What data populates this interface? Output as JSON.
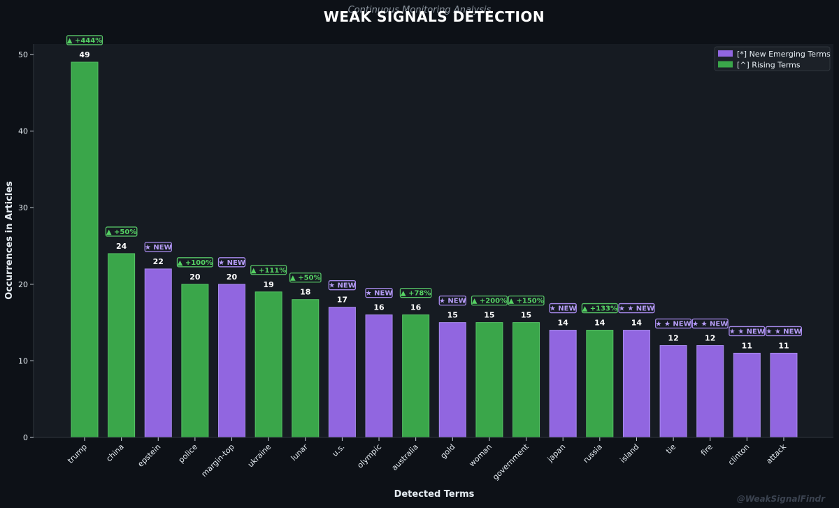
{
  "colors": {
    "background": "#0d1117",
    "plot_background": "#161b22",
    "new": "#9166e0",
    "new_edge": "#a98bef",
    "rising": "#3aa64a",
    "rising_edge": "#56c466",
    "badge_new_text": "#b59cf5",
    "badge_rising_text": "#56d364"
  },
  "chart_data": {
    "type": "bar",
    "title": "WEAK SIGNALS DETECTION",
    "subtitle": "Continuous Monitoring Analysis",
    "xlabel": "Detected Terms",
    "ylabel": "Occurrences in Articles",
    "ylim": [
      0,
      52
    ],
    "yticks": [
      0,
      10,
      20,
      30,
      40,
      50
    ],
    "grid": false,
    "legend_position": "top-right",
    "legend": [
      {
        "key": "new",
        "label": "[*] New Emerging Terms"
      },
      {
        "key": "rising",
        "label": "[^] Rising Terms"
      }
    ],
    "categories": [
      "trump",
      "china",
      "epstein",
      "police",
      "margin-top",
      "ukraine",
      "lunar",
      "u.s.",
      "olympic",
      "australia",
      "gold",
      "woman",
      "government",
      "japan",
      "russia",
      "island",
      "tie",
      "fire",
      "clinton",
      "attack"
    ],
    "values": [
      49,
      24,
      22,
      20,
      20,
      19,
      18,
      17,
      16,
      16,
      15,
      15,
      15,
      14,
      14,
      14,
      12,
      12,
      11,
      11
    ],
    "kinds": [
      "rising",
      "rising",
      "new",
      "rising",
      "new",
      "rising",
      "rising",
      "new",
      "new",
      "rising",
      "new",
      "rising",
      "rising",
      "new",
      "rising",
      "new",
      "new",
      "new",
      "new",
      "new"
    ],
    "badges": [
      "▲ +444%",
      "▲ +50%",
      "★ NEW",
      "▲ +100%",
      "★ NEW",
      "▲ +111%",
      "▲ +50%",
      "★ NEW",
      "★ NEW",
      "▲ +78%",
      "★ NEW",
      "▲ +200%",
      "▲ +150%",
      "★ NEW",
      "▲ +133%",
      "★ ★ NEW",
      "★ ★ NEW",
      "★ ★ NEW",
      "★ ★ NEW",
      "★ ★ NEW"
    ]
  },
  "watermark": "@WeakSignalFindr"
}
